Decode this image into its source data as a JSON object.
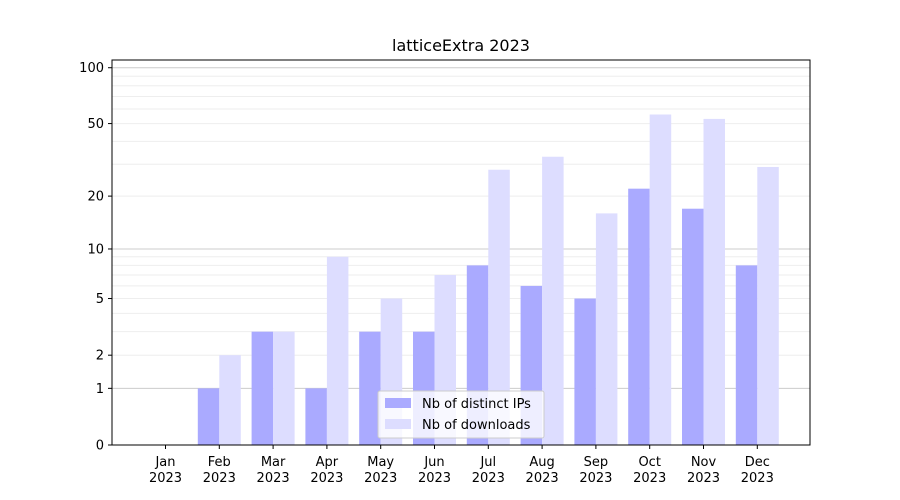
{
  "chart_data": {
    "type": "bar",
    "title": "latticeExtra 2023",
    "categories": [
      "Jan",
      "Feb",
      "Mar",
      "Apr",
      "May",
      "Jun",
      "Jul",
      "Aug",
      "Sep",
      "Oct",
      "Nov",
      "Dec"
    ],
    "category_year": "2023",
    "series": [
      {
        "name": "Nb of distinct IPs",
        "color": "#aaaaff",
        "values": [
          0,
          1,
          3,
          1,
          3,
          3,
          8,
          6,
          5,
          22,
          17,
          8
        ]
      },
      {
        "name": "Nb of downloads",
        "color": "#ddddff",
        "values": [
          0,
          2,
          3,
          9,
          5,
          7,
          28,
          33,
          16,
          56,
          53,
          29
        ]
      }
    ],
    "y_scale": "log(1+y)",
    "y_ticks": [
      0,
      1,
      2,
      5,
      10,
      20,
      50,
      100
    ],
    "y_tick_labels": [
      "0",
      "1",
      "2",
      "5",
      "10",
      "20",
      "50",
      "100"
    ],
    "ylim": [
      0,
      110
    ],
    "major_grid": [
      1,
      10,
      100
    ],
    "grid": true,
    "legend_position": "bottom-center"
  }
}
